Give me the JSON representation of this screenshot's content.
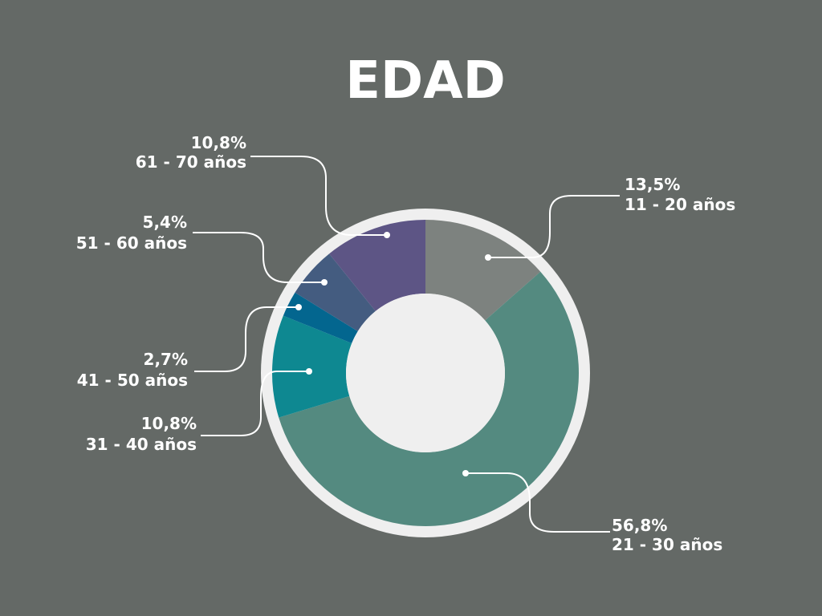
{
  "background": "#646966",
  "chart_data": {
    "type": "pie",
    "title": "EDAD",
    "slices": [
      {
        "label": "11 - 20 años",
        "value": 13.5,
        "value_label": "13,5%",
        "color": "#7d827f"
      },
      {
        "label": "21 - 30 años",
        "value": 56.8,
        "value_label": "56,8%",
        "color": "#548a80"
      },
      {
        "label": "31 - 40 años",
        "value": 10.8,
        "value_label": "10,8%",
        "color": "#0e8891"
      },
      {
        "label": "41 - 50 años",
        "value": 2.7,
        "value_label": "2,7%",
        "color": "#03668f"
      },
      {
        "label": "51 - 60 años",
        "value": 5.4,
        "value_label": "5,4%",
        "color": "#445c80"
      },
      {
        "label": "61 - 70 años",
        "value": 10.8,
        "value_label": "10,8%",
        "color": "#5d5585"
      }
    ],
    "ring_color": "#efefef",
    "hole_color": "#efefef"
  }
}
